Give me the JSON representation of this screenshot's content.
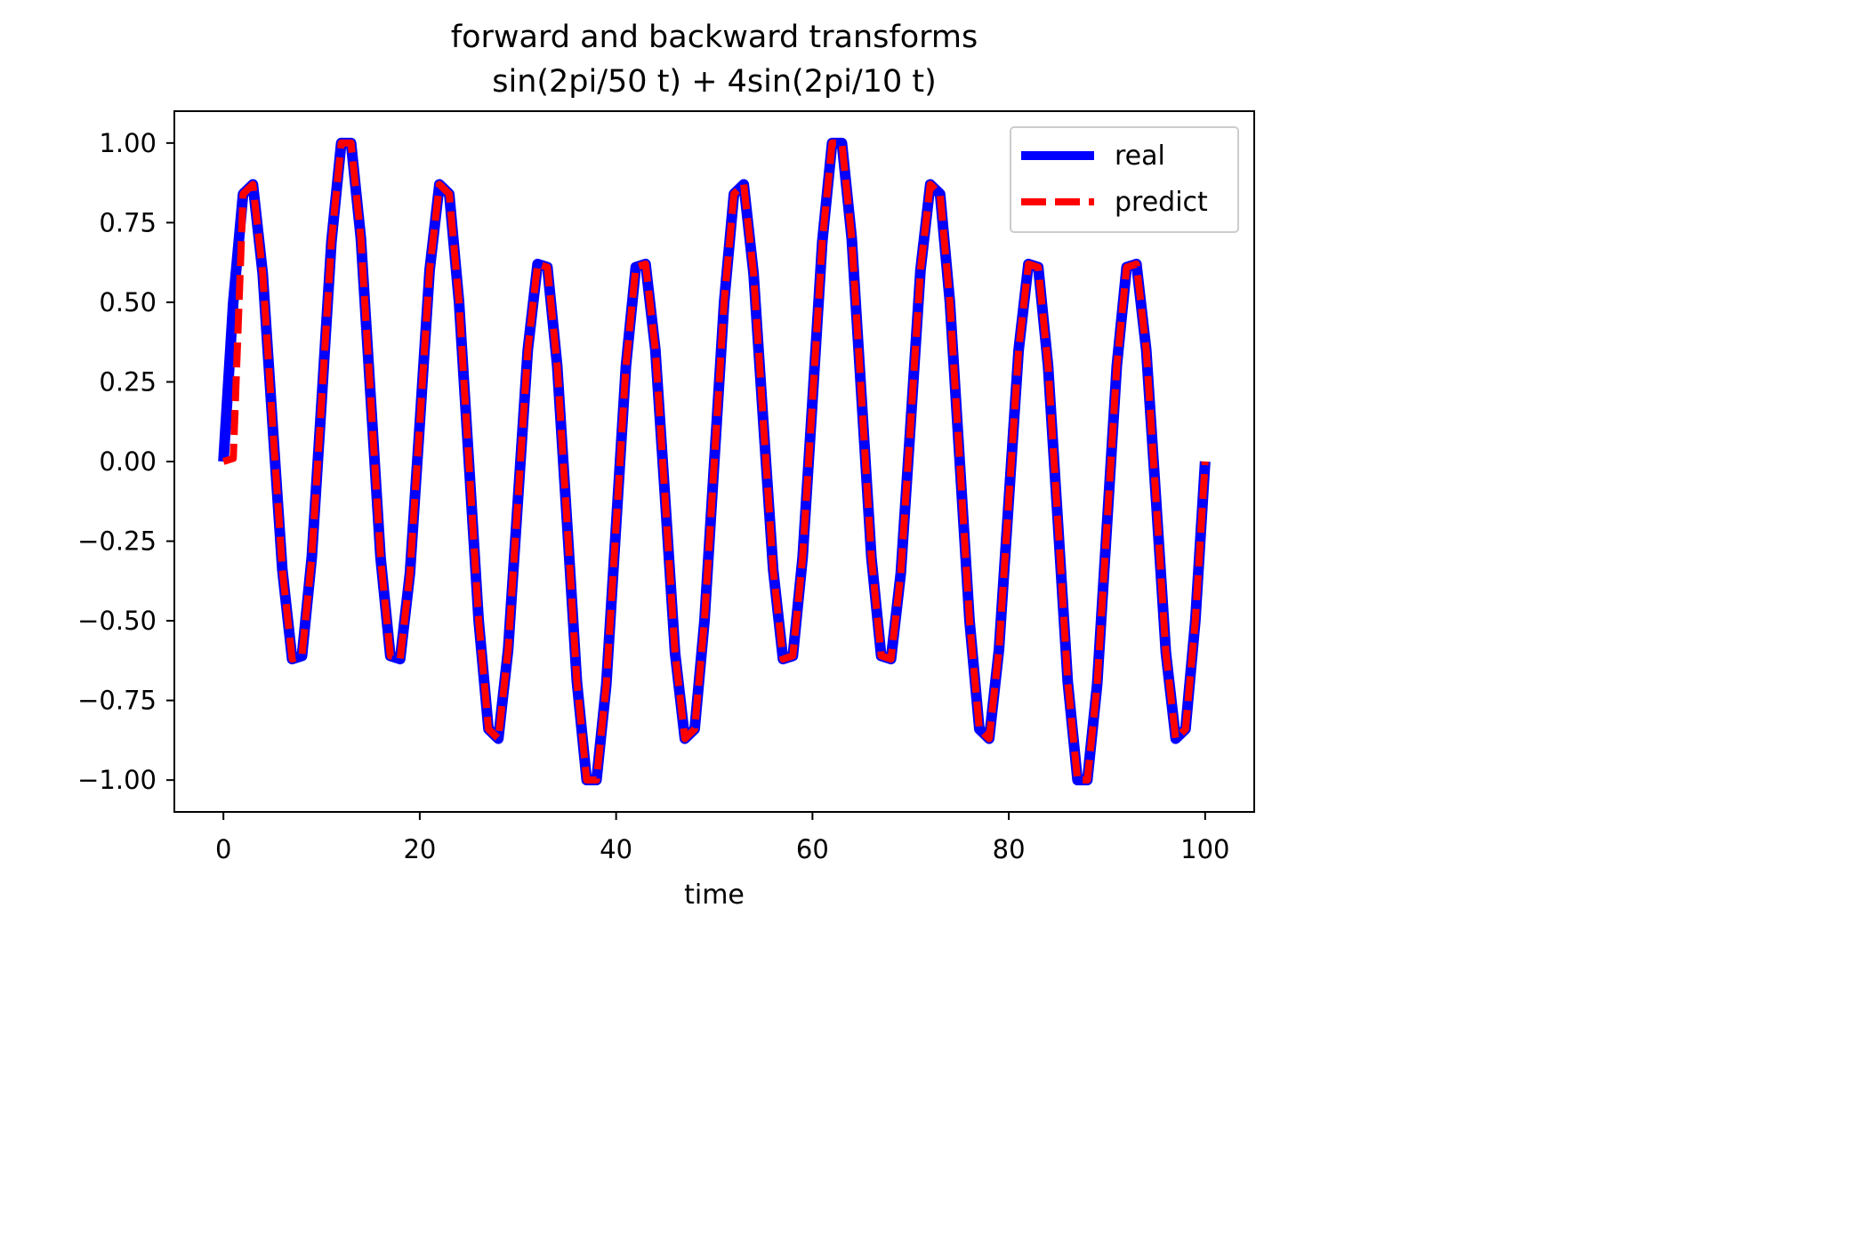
{
  "chart_data": {
    "type": "line",
    "title_line1": "forward and backward transforms",
    "title_line2": "sin(2pi/50 t) + 4sin(2pi/10 t)",
    "xlabel": "time",
    "ylabel": "",
    "xlim": [
      -5,
      105
    ],
    "ylim": [
      -1.1,
      1.1
    ],
    "x_ticks": [
      0,
      20,
      40,
      60,
      80,
      100
    ],
    "x_tick_labels": [
      "0",
      "20",
      "40",
      "60",
      "80",
      "100"
    ],
    "y_ticks": [
      1.0,
      0.75,
      0.5,
      0.25,
      0.0,
      -0.25,
      -0.5,
      -0.75,
      -1.0
    ],
    "y_tick_labels": [
      "1.00",
      "0.75",
      "0.50",
      "0.25",
      "0.00",
      "−0.25",
      "−0.50",
      "−0.75",
      "−1.00"
    ],
    "grid": false,
    "legend_position": "top-right",
    "series": [
      {
        "name": "real",
        "color": "#0000ff",
        "style": "solid",
        "x": [
          0,
          1,
          2,
          3,
          4,
          5,
          6,
          7,
          8,
          9,
          10,
          11,
          12,
          13,
          14,
          15,
          16,
          17,
          18,
          19,
          20,
          21,
          22,
          23,
          24,
          25,
          26,
          27,
          28,
          29,
          30,
          31,
          32,
          33,
          34,
          35,
          36,
          37,
          38,
          39,
          40,
          41,
          42,
          43,
          44,
          45,
          46,
          47,
          48,
          49,
          50,
          51,
          52,
          53,
          54,
          55,
          56,
          57,
          58,
          59,
          60,
          61,
          62,
          63,
          64,
          65,
          66,
          67,
          68,
          69,
          70,
          71,
          72,
          73,
          74,
          75,
          76,
          77,
          78,
          79,
          80,
          81,
          82,
          83,
          84,
          85,
          86,
          87,
          88,
          89,
          90,
          91,
          92,
          93,
          94,
          95,
          96,
          97,
          98,
          99,
          100
        ],
        "y": [
          0.0,
          0.5,
          0.84,
          0.87,
          0.59,
          0.12,
          -0.34,
          -0.62,
          -0.61,
          -0.3,
          0.19,
          0.69,
          1.0,
          1.0,
          0.7,
          0.2,
          -0.3,
          -0.61,
          -0.62,
          -0.35,
          0.12,
          0.6,
          0.87,
          0.84,
          0.5,
          0.0,
          -0.5,
          -0.84,
          -0.87,
          -0.59,
          -0.12,
          0.35,
          0.62,
          0.61,
          0.3,
          -0.19,
          -0.69,
          -1.0,
          -1.0,
          -0.7,
          -0.2,
          0.3,
          0.61,
          0.62,
          0.35,
          -0.12,
          -0.6,
          -0.87,
          -0.84,
          -0.5,
          0.0,
          0.5,
          0.84,
          0.87,
          0.59,
          0.12,
          -0.34,
          -0.62,
          -0.61,
          -0.3,
          0.19,
          0.69,
          1.0,
          1.0,
          0.7,
          0.2,
          -0.3,
          -0.61,
          -0.62,
          -0.35,
          0.12,
          0.6,
          0.87,
          0.84,
          0.5,
          0.0,
          -0.5,
          -0.84,
          -0.87,
          -0.59,
          -0.12,
          0.35,
          0.62,
          0.61,
          0.3,
          -0.19,
          -0.69,
          -1.0,
          -1.0,
          -0.7,
          -0.2,
          0.3,
          0.61,
          0.62,
          0.35,
          -0.12,
          -0.6,
          -0.87,
          -0.84,
          -0.5,
          0.0
        ]
      },
      {
        "name": "predict",
        "color": "#ff0000",
        "style": "dashed",
        "x": [
          0,
          1,
          2,
          3,
          4,
          5,
          6,
          7,
          8,
          9,
          10,
          11,
          12,
          13,
          14,
          15,
          16,
          17,
          18,
          19,
          20,
          21,
          22,
          23,
          24,
          25,
          26,
          27,
          28,
          29,
          30,
          31,
          32,
          33,
          34,
          35,
          36,
          37,
          38,
          39,
          40,
          41,
          42,
          43,
          44,
          45,
          46,
          47,
          48,
          49,
          50,
          51,
          52,
          53,
          54,
          55,
          56,
          57,
          58,
          59,
          60,
          61,
          62,
          63,
          64,
          65,
          66,
          67,
          68,
          69,
          70,
          71,
          72,
          73,
          74,
          75,
          76,
          77,
          78,
          79,
          80,
          81,
          82,
          83,
          84,
          85,
          86,
          87,
          88,
          89,
          90,
          91,
          92,
          93,
          94,
          95,
          96,
          97,
          98,
          99,
          100
        ],
        "y": [
          0.0,
          0.01,
          0.84,
          0.87,
          0.59,
          0.12,
          -0.34,
          -0.62,
          -0.61,
          -0.3,
          0.19,
          0.69,
          1.0,
          1.0,
          0.7,
          0.2,
          -0.3,
          -0.61,
          -0.62,
          -0.35,
          0.12,
          0.6,
          0.87,
          0.84,
          0.5,
          0.0,
          -0.5,
          -0.84,
          -0.87,
          -0.59,
          -0.12,
          0.35,
          0.62,
          0.61,
          0.3,
          -0.19,
          -0.69,
          -1.0,
          -1.0,
          -0.7,
          -0.2,
          0.3,
          0.61,
          0.62,
          0.35,
          -0.12,
          -0.6,
          -0.87,
          -0.84,
          -0.5,
          0.0,
          0.5,
          0.84,
          0.87,
          0.59,
          0.12,
          -0.34,
          -0.62,
          -0.61,
          -0.3,
          0.19,
          0.69,
          1.0,
          1.0,
          0.7,
          0.2,
          -0.3,
          -0.61,
          -0.62,
          -0.35,
          0.12,
          0.6,
          0.87,
          0.84,
          0.5,
          0.0,
          -0.5,
          -0.84,
          -0.87,
          -0.59,
          -0.12,
          0.35,
          0.62,
          0.61,
          0.3,
          -0.19,
          -0.69,
          -1.0,
          -1.0,
          -0.7,
          -0.2,
          0.3,
          0.61,
          0.62,
          0.35,
          -0.12,
          -0.6,
          -0.87,
          -0.84,
          -0.5,
          0.0
        ]
      }
    ]
  }
}
